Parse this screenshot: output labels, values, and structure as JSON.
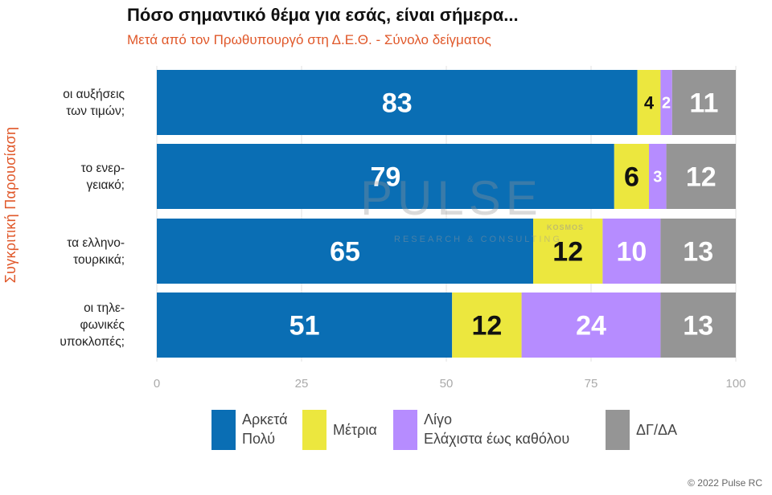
{
  "header": {
    "title": "Πόσο σημαντικό θέμα για εσάς, είναι σήμερα...",
    "subtitle": "Μετά από τον Πρωθυπουργό στη Δ.Ε.Θ.  -  Σύνολο δείγματος",
    "side_label": "Συγκριτική  Παρουσίαση"
  },
  "chart_data": {
    "type": "bar",
    "orientation": "horizontal",
    "stacked": true,
    "categories": [
      [
        "οι αυξήσεις",
        "των τιμών;"
      ],
      [
        "το ενερ-",
        "γειακό;"
      ],
      [
        "τα ελληνο-",
        "τουρκικά;"
      ],
      [
        "οι τηλε-",
        "φωνικές",
        "υποκλοπές;"
      ]
    ],
    "series": [
      {
        "name": "Αρκετά Πολύ",
        "color": "#0a6eb4",
        "label_color": "#ffffff",
        "values": [
          83,
          79,
          65,
          51
        ]
      },
      {
        "name": "Μέτρια",
        "color": "#ece73e",
        "label_color": "#111111",
        "values": [
          4,
          6,
          12,
          12
        ]
      },
      {
        "name": "Λίγο Ελάχιστα έως καθόλου",
        "color": "#b68cff",
        "label_color": "#ffffff",
        "values": [
          2,
          3,
          10,
          24
        ]
      },
      {
        "name": "ΔΓ/ΔΑ",
        "color": "#959595",
        "label_color": "#ffffff",
        "values": [
          11,
          12,
          13,
          13
        ]
      }
    ],
    "xlim": [
      0,
      100
    ],
    "xticks": [
      "0",
      "25",
      "50",
      "75",
      "100"
    ],
    "grid": "vertical",
    "legend_position": "bottom"
  },
  "legend": {
    "items": [
      {
        "lines": [
          "Αρκετά",
          "Πολύ"
        ],
        "color": "#0a6eb4"
      },
      {
        "lines": [
          "Μέτρια"
        ],
        "color": "#ece73e"
      },
      {
        "lines": [
          "Λίγο",
          "Ελάχιστα έως καθόλου"
        ],
        "color": "#b68cff"
      },
      {
        "lines": [
          "ΔΓ/ΔΑ"
        ],
        "color": "#959595"
      }
    ]
  },
  "watermark": {
    "main": "PULSE",
    "sub": "RESEARCH & CONSULTING",
    "kos": "KOSMOS"
  },
  "footer": {
    "copyright": "© 2022 Pulse RC"
  }
}
